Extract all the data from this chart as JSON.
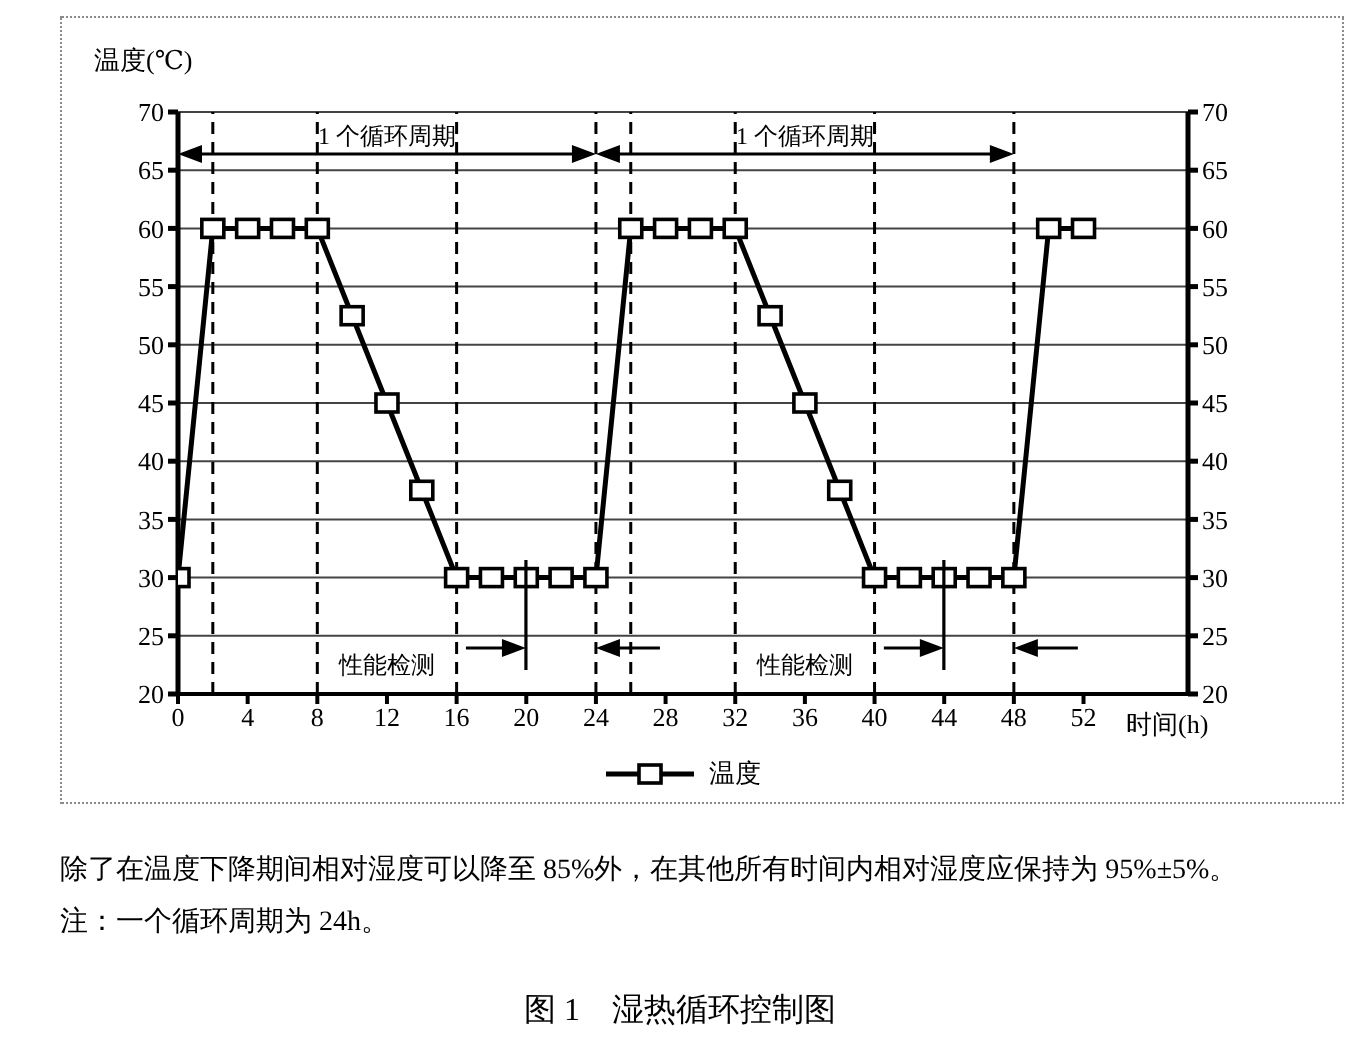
{
  "chart_data": {
    "type": "line",
    "title": "图 1　湿热循环控制图",
    "xlabel": "时间(h)",
    "ylabel": "温度(℃)",
    "annotations": [
      "1 个循环周期",
      "1 个循环周期",
      "性能检测",
      "性能检测",
      "除了在温度下降期间相对湿度可以降至 85%外，在其他所有时间内相对湿度应保持为 95%±5%。",
      "注：一个循环周期为 24h。"
    ],
    "series": [
      {
        "name": "温度",
        "color": "#000000",
        "x": [
          0,
          2,
          4,
          6,
          8,
          10,
          12,
          14,
          16,
          18,
          20,
          22,
          24,
          26,
          28,
          30,
          32,
          34,
          36,
          38,
          40,
          42,
          44,
          46,
          48,
          50,
          52
        ],
        "values": [
          30,
          60,
          60,
          60,
          60,
          52.5,
          45,
          37.5,
          30,
          30,
          30,
          30,
          30,
          60,
          60,
          60,
          60,
          52.5,
          45,
          37.5,
          30,
          30,
          30,
          30,
          30,
          60,
          60
        ]
      }
    ],
    "xlim": [
      0,
      58
    ],
    "xticks": [
      0,
      4,
      8,
      12,
      16,
      20,
      24,
      28,
      32,
      36,
      40,
      44,
      48,
      52
    ],
    "ylim": [
      20,
      70
    ],
    "yticks": [
      20,
      25,
      30,
      35,
      40,
      45,
      50,
      55,
      60,
      65,
      70
    ],
    "y2lim": [
      20,
      70
    ],
    "y2ticks": [
      20,
      25,
      30,
      35,
      40,
      45,
      50,
      55,
      60,
      65,
      70
    ],
    "ref_lines": [
      {
        "axis": "x",
        "value": 2,
        "line_style": "dashed"
      },
      {
        "axis": "x",
        "value": 8,
        "line_style": "dashed"
      },
      {
        "axis": "x",
        "value": 16,
        "line_style": "dashed"
      },
      {
        "axis": "x",
        "value": 24,
        "line_style": "dashed"
      },
      {
        "axis": "x",
        "value": 26,
        "line_style": "dashed"
      },
      {
        "axis": "x",
        "value": 32,
        "line_style": "dashed"
      },
      {
        "axis": "x",
        "value": 40,
        "line_style": "dashed"
      },
      {
        "axis": "x",
        "value": 48,
        "line_style": "dashed"
      }
    ],
    "grid": "y",
    "legend": "bottom",
    "marker": "square",
    "line_style": "solid"
  }
}
